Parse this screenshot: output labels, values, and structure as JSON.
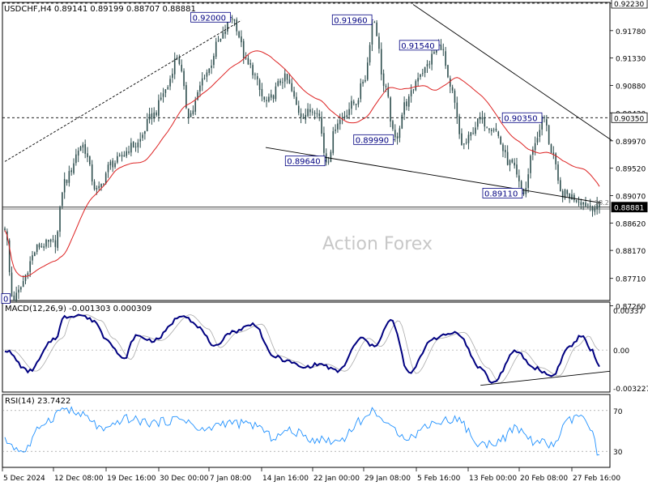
{
  "header": {
    "symbol_line": "USDCHF,H4  0.89141 0.89199 0.88707 0.88881",
    "macd_line": "MACD(12,26,9) -0.001303 0.000309",
    "rsi_line": "RSI(14) 23.7422",
    "watermark": "Action Forex"
  },
  "colors": {
    "candle": "#2f4f4f",
    "ma": "#dd2222",
    "macd": "#000080",
    "signal": "#a9a9a9",
    "rsi": "#1e90ff",
    "trend": "#000000",
    "tag_border": "#000080",
    "last_tag_bg": "#000000"
  },
  "chart_data": [
    {
      "type": "candlestick",
      "name": "USDCHF H4 price",
      "ylim": [
        0.8736,
        0.9223
      ],
      "x_ticks": [
        "5 Dec 2024",
        "12 Dec 08:00",
        "19 Dec 16:00",
        "30 Dec 00:00",
        "7 Jan 08:00",
        "14 Jan 16:00",
        "22 Jan 00:00",
        "29 Jan 08:00",
        "5 Feb 16:00",
        "13 Feb 00:00",
        "20 Feb 08:00",
        "27 Feb 16:00"
      ],
      "y_ticks": [
        "0.92230",
        "0.91780",
        "0.91330",
        "0.90880",
        "0.90430",
        "0.89970",
        "0.89520",
        "0.89070",
        "0.88620",
        "0.88170",
        "0.87710",
        "0.87260"
      ],
      "annotations": [
        {
          "label": "0.92000",
          "value": 0.92,
          "bar": 0.382
        },
        {
          "label": "0.91960",
          "value": 0.9196,
          "bar": 0.62
        },
        {
          "label": "0.91540",
          "value": 0.9154,
          "bar": 0.733
        },
        {
          "label": "0.90350",
          "value": 0.9035,
          "bar": 0.906
        },
        {
          "label": "0.89990",
          "value": 0.8999,
          "bar": 0.656
        },
        {
          "label": "0.89640",
          "value": 0.8964,
          "bar": 0.541
        },
        {
          "label": "0.89110",
          "value": 0.8911,
          "bar": 0.873
        },
        {
          "label": "0",
          "value": 0.8738,
          "bar": 0.013
        }
      ],
      "price_tags": [
        "0.90350",
        "0.88881",
        "0.92230"
      ],
      "level_label": "38.2",
      "last_price": 0.88881,
      "waypoints": [
        [
          0,
          0.8855
        ],
        [
          0.013,
          0.8738
        ],
        [
          0.06,
          0.8825
        ],
        [
          0.085,
          0.883
        ],
        [
          0.1,
          0.893
        ],
        [
          0.13,
          0.899
        ],
        [
          0.155,
          0.8915
        ],
        [
          0.18,
          0.896
        ],
        [
          0.22,
          0.899
        ],
        [
          0.25,
          0.904
        ],
        [
          0.27,
          0.908
        ],
        [
          0.29,
          0.9135
        ],
        [
          0.31,
          0.904
        ],
        [
          0.34,
          0.911
        ],
        [
          0.36,
          0.916
        ],
        [
          0.382,
          0.92
        ],
        [
          0.41,
          0.912
        ],
        [
          0.44,
          0.906
        ],
        [
          0.47,
          0.91
        ],
        [
          0.5,
          0.904
        ],
        [
          0.525,
          0.905
        ],
        [
          0.541,
          0.8964
        ],
        [
          0.56,
          0.903
        ],
        [
          0.59,
          0.906
        ],
        [
          0.605,
          0.91
        ],
        [
          0.62,
          0.9196
        ],
        [
          0.64,
          0.908
        ],
        [
          0.656,
          0.8999
        ],
        [
          0.675,
          0.906
        ],
        [
          0.7,
          0.911
        ],
        [
          0.733,
          0.9154
        ],
        [
          0.75,
          0.908
        ],
        [
          0.77,
          0.899
        ],
        [
          0.8,
          0.903
        ],
        [
          0.82,
          0.902
        ],
        [
          0.85,
          0.896
        ],
        [
          0.873,
          0.8911
        ],
        [
          0.89,
          0.899
        ],
        [
          0.906,
          0.9035
        ],
        [
          0.92,
          0.898
        ],
        [
          0.935,
          0.891
        ],
        [
          1.0,
          0.8888
        ]
      ]
    },
    {
      "type": "line",
      "name": "MACD(12,26,9)",
      "ylim": [
        -0.0035,
        0.004
      ],
      "y_ticks": [
        "0.00337",
        "0.00",
        "-0.003227"
      ],
      "waypoints": [
        [
          0,
          0.0
        ],
        [
          0.04,
          -0.0018
        ],
        [
          0.085,
          0.001
        ],
        [
          0.1,
          0.0028
        ],
        [
          0.125,
          0.003
        ],
        [
          0.15,
          0.0025
        ],
        [
          0.17,
          0.001
        ],
        [
          0.2,
          -0.0008
        ],
        [
          0.22,
          0.0012
        ],
        [
          0.25,
          0.0008
        ],
        [
          0.3,
          0.003
        ],
        [
          0.33,
          0.0018
        ],
        [
          0.35,
          0.0002
        ],
        [
          0.38,
          0.0015
        ],
        [
          0.42,
          0.0022
        ],
        [
          0.45,
          -0.0005
        ],
        [
          0.48,
          -0.001
        ],
        [
          0.5,
          -0.0015
        ],
        [
          0.53,
          -0.0012
        ],
        [
          0.56,
          -0.0018
        ],
        [
          0.6,
          0.001
        ],
        [
          0.62,
          0.0003
        ],
        [
          0.65,
          0.0025
        ],
        [
          0.68,
          -0.002
        ],
        [
          0.72,
          0.001
        ],
        [
          0.76,
          0.0015
        ],
        [
          0.8,
          -0.0015
        ],
        [
          0.82,
          -0.0028
        ],
        [
          0.86,
          -0.0001
        ],
        [
          0.89,
          -0.0015
        ],
        [
          0.92,
          -0.0022
        ],
        [
          0.95,
          0.0003
        ],
        [
          0.97,
          0.0012
        ],
        [
          0.985,
          0.0001
        ],
        [
          1.0,
          -0.0013
        ]
      ],
      "signal_lag": 0.012,
      "trendline": [
        [
          0.8,
          -0.003
        ],
        [
          1.0,
          -0.0018
        ]
      ]
    },
    {
      "type": "line",
      "name": "RSI(14)",
      "ylim": [
        15,
        85
      ],
      "y_ticks": [
        "70",
        "30"
      ],
      "levels": [
        70,
        30
      ],
      "waypoints": [
        [
          0,
          40
        ],
        [
          0.03,
          30
        ],
        [
          0.07,
          60
        ],
        [
          0.1,
          72
        ],
        [
          0.13,
          65
        ],
        [
          0.17,
          50
        ],
        [
          0.2,
          62
        ],
        [
          0.25,
          58
        ],
        [
          0.3,
          62
        ],
        [
          0.33,
          50
        ],
        [
          0.37,
          58
        ],
        [
          0.42,
          56
        ],
        [
          0.45,
          44
        ],
        [
          0.48,
          50
        ],
        [
          0.52,
          42
        ],
        [
          0.56,
          40
        ],
        [
          0.6,
          60
        ],
        [
          0.62,
          70
        ],
        [
          0.65,
          52
        ],
        [
          0.68,
          44
        ],
        [
          0.72,
          58
        ],
        [
          0.76,
          62
        ],
        [
          0.8,
          36
        ],
        [
          0.83,
          40
        ],
        [
          0.86,
          52
        ],
        [
          0.89,
          40
        ],
        [
          0.92,
          36
        ],
        [
          0.95,
          60
        ],
        [
          0.97,
          66
        ],
        [
          0.985,
          50
        ],
        [
          1.0,
          24
        ]
      ]
    }
  ]
}
